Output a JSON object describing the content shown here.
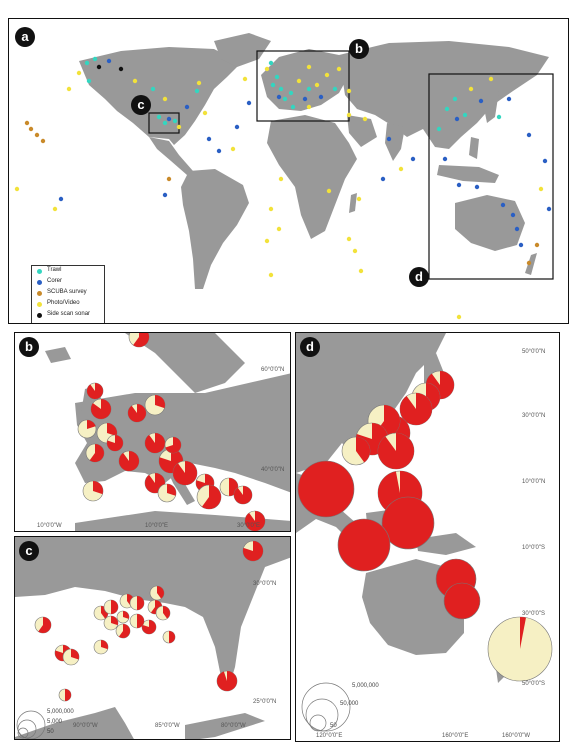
{
  "panels": {
    "a": {
      "label": "a"
    },
    "b": {
      "label": "b"
    },
    "c": {
      "label": "c"
    },
    "d": {
      "label": "d"
    }
  },
  "inset_labels": {
    "b": "b",
    "c": "c",
    "d": "d"
  },
  "legend": {
    "items": [
      {
        "label": "Trawl",
        "color": "#33d6c0"
      },
      {
        "label": "Corer",
        "color": "#2a5fc4"
      },
      {
        "label": "SCUBA survey",
        "color": "#c98a2a"
      },
      {
        "label": "Photo/Video",
        "color": "#f2e23a"
      },
      {
        "label": "Side scan sonar",
        "color": "#111111"
      }
    ]
  },
  "coords": {
    "b": {
      "lat1": "60°0'0\"N",
      "lat2": "40°0'0\"N",
      "lon1": "10°0'0\"W",
      "lon2": "10°0'0\"E",
      "lon3": "30°0'0\"E"
    },
    "c": {
      "lat1": "30°0'0\"N",
      "lat2": "25°0'0\"N",
      "lon1": "90°0'0\"W",
      "lon2": "85°0'0\"W",
      "lon3": "80°0'0\"W"
    },
    "d": {
      "lat1": "50°0'0\"N",
      "lat2": "30°0'0\"N",
      "lat3": "10°0'0\"N",
      "lat4": "10°0'0\"S",
      "lat5": "30°0'0\"S",
      "lat6": "50°0'0\"S",
      "lon1": "120°0'0\"E",
      "lon2": "160°0'0\"E",
      "lon3": "160°0'0\"W"
    }
  },
  "size_legend_c": {
    "v1": "5,000,000",
    "v2": "5,000",
    "v3": "50"
  },
  "size_legend_d": {
    "v1": "5,000,000",
    "v2": "50,000",
    "v3": "50"
  },
  "colors": {
    "land": "#999999",
    "pie_red": "#e02020",
    "pie_cream": "#f6f0c4",
    "border": "#111111"
  }
}
